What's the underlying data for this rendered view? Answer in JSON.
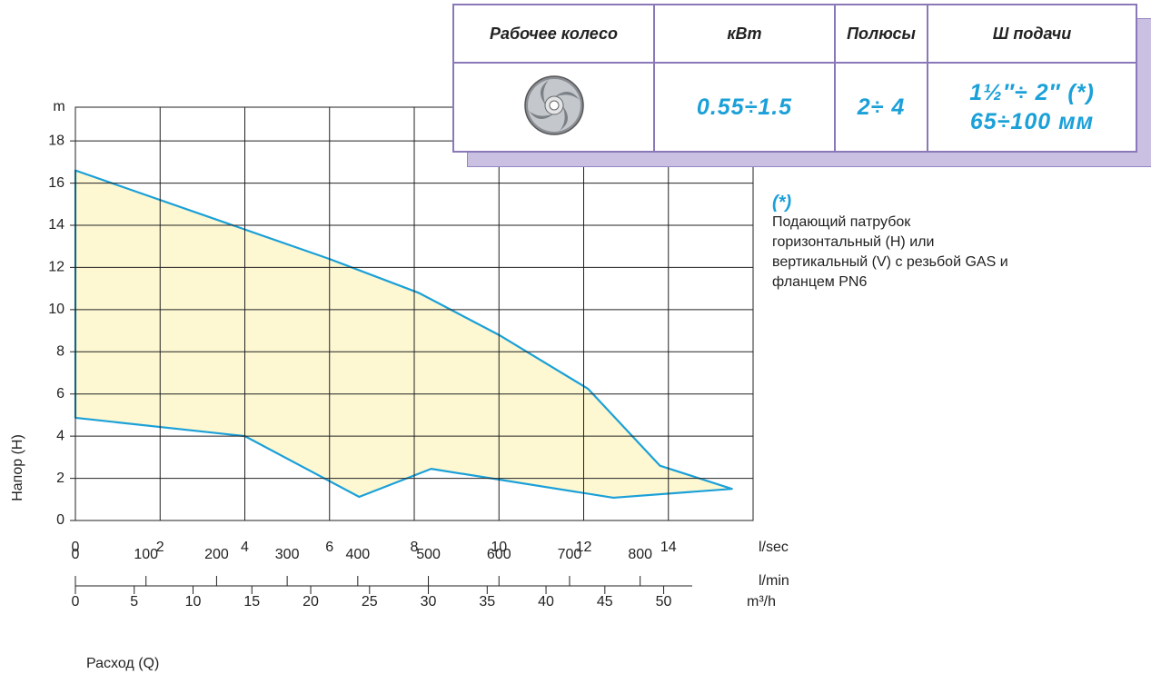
{
  "chart_data": {
    "type": "area",
    "y_label": "Напор (H)",
    "x_label": "Расход (Q)",
    "y_unit": "m",
    "x_unit": "l/sec",
    "xlim": [
      0,
      16
    ],
    "xticks": [
      0,
      2,
      4,
      6,
      8,
      10,
      12,
      14
    ],
    "ylim": [
      0,
      19.6
    ],
    "yticks": [
      0,
      2,
      4,
      6,
      8,
      10,
      12,
      14,
      16,
      18
    ],
    "grid": true,
    "series": [
      {
        "color": "#1ba0d8",
        "fill": "#fdf8d2",
        "x": [
          0,
          4,
          6,
          8.1,
          10,
          12.1,
          13.8,
          15.5,
          12.7,
          8.4,
          6.7,
          4,
          0,
          0
        ],
        "values": [
          16.6,
          13.8,
          12.4,
          10.8,
          8.8,
          6.25,
          2.6,
          1.5,
          1.08,
          2.45,
          1.12,
          4.0,
          4.87,
          16.6
        ]
      }
    ],
    "x2": {
      "unit": "l/min",
      "xlim": [
        0,
        960
      ],
      "xticks": [
        0,
        100,
        200,
        300,
        400,
        500,
        600,
        700,
        800
      ]
    },
    "x3": {
      "unit": "m³/h",
      "xlim": [
        0,
        57.6
      ],
      "xticks": [
        0,
        5,
        10,
        15,
        20,
        25,
        30,
        35,
        40,
        45,
        50
      ]
    }
  },
  "table": {
    "headers": [
      "Рабочее колесо",
      "кВт",
      "Полюсы",
      "Ш подачи"
    ],
    "row": [
      "0.55÷1.5",
      "2÷ 4",
      [
        "1½″÷ 2″  (*)",
        "65÷100 мм"
      ]
    ]
  },
  "note": {
    "mark": "(*)",
    "lines": [
      "Подающий патрубок",
      "горизонтальный (H) или",
      "вертикальный (V) с резьбой GAS и",
      "фланцем PN6"
    ]
  }
}
